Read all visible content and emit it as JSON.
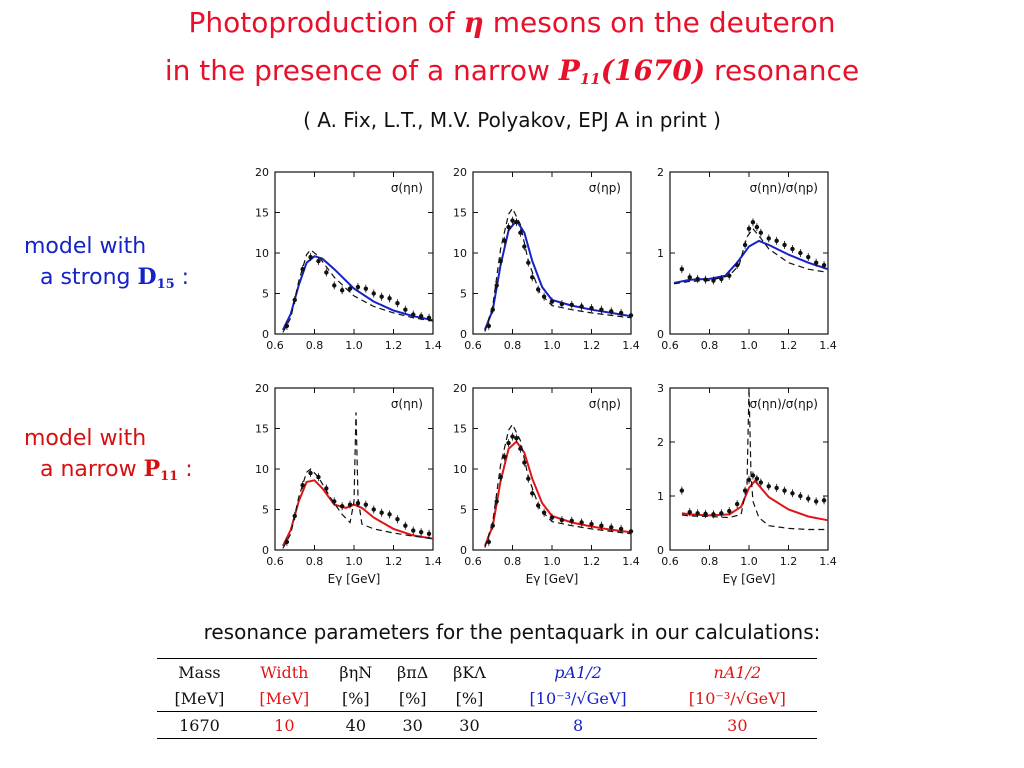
{
  "title": {
    "line1_part1": "Photoproduction of ",
    "line1_symbol": "η",
    "line1_part2": " mesons on the deuteron",
    "line2_part1": "in the presence of a narrow ",
    "line2_P": "P",
    "line2_sub": "11",
    "line2_mass": "(1670)",
    "line2_part2": " resonance"
  },
  "authors": "( A. Fix, L.T., M.V. Polyakov, EPJ A in print )",
  "models": [
    {
      "line1": "model with",
      "line2_prefix": "a strong ",
      "symbol": "D",
      "sub": "15",
      "suffix": " :",
      "color": "#1522c8"
    },
    {
      "line1": "model with",
      "line2_prefix": "a narrow ",
      "symbol": "P",
      "sub": "11",
      "suffix": " :",
      "color": "#d61010"
    }
  ],
  "chart_data": [
    {
      "type": "line",
      "panel": "top-left",
      "label": "σ(ηn)",
      "xlim": [
        0.6,
        1.4
      ],
      "ylim": [
        0,
        20
      ],
      "xticks": [
        0.6,
        0.8,
        1.0,
        1.2,
        1.4
      ],
      "yticks": [
        0,
        5,
        10,
        15,
        20
      ],
      "xlabel": "",
      "series": [
        {
          "style": "solid",
          "color": "#1522c8",
          "x": [
            0.64,
            0.68,
            0.72,
            0.76,
            0.8,
            0.84,
            0.9,
            1.0,
            1.1,
            1.2,
            1.3,
            1.4
          ],
          "y": [
            0.5,
            2.5,
            6.0,
            8.8,
            9.6,
            9.3,
            8.0,
            5.6,
            4.0,
            2.9,
            2.2,
            1.7
          ]
        },
        {
          "style": "dashed",
          "color": "#111111",
          "x": [
            0.64,
            0.68,
            0.72,
            0.76,
            0.78,
            0.82,
            0.9,
            1.0,
            1.1,
            1.2,
            1.3,
            1.4
          ],
          "y": [
            0.2,
            2.0,
            6.5,
            9.8,
            10.4,
            9.6,
            7.0,
            4.7,
            3.4,
            2.6,
            2.0,
            1.6
          ]
        },
        {
          "style": "points",
          "color": "#111111",
          "x": [
            0.66,
            0.7,
            0.74,
            0.78,
            0.82,
            0.86,
            0.9,
            0.94,
            0.98,
            1.02,
            1.06,
            1.1,
            1.14,
            1.18,
            1.22,
            1.26,
            1.3,
            1.34,
            1.38
          ],
          "y": [
            1.0,
            4.2,
            8.0,
            9.5,
            9.0,
            7.6,
            6.0,
            5.4,
            5.6,
            5.8,
            5.6,
            5.0,
            4.6,
            4.4,
            3.8,
            3.0,
            2.4,
            2.2,
            2.0
          ]
        }
      ]
    },
    {
      "type": "line",
      "panel": "top-middle",
      "label": "σ(ηp)",
      "xlim": [
        0.6,
        1.4
      ],
      "ylim": [
        0,
        20
      ],
      "xticks": [
        0.6,
        0.8,
        1.0,
        1.2,
        1.4
      ],
      "yticks": [
        0,
        5,
        10,
        15,
        20
      ],
      "xlabel": "",
      "series": [
        {
          "style": "solid",
          "color": "#1522c8",
          "x": [
            0.66,
            0.7,
            0.74,
            0.78,
            0.82,
            0.86,
            0.9,
            0.95,
            1.0,
            1.1,
            1.2,
            1.3,
            1.4
          ],
          "y": [
            0.5,
            3.0,
            8.5,
            12.8,
            14.0,
            12.5,
            9.0,
            5.8,
            4.2,
            3.5,
            3.0,
            2.6,
            2.2
          ]
        },
        {
          "style": "dashed",
          "color": "#111111",
          "x": [
            0.66,
            0.7,
            0.74,
            0.78,
            0.8,
            0.84,
            0.88,
            0.94,
            1.0,
            1.1,
            1.2,
            1.3,
            1.4
          ],
          "y": [
            0.3,
            3.5,
            10.5,
            14.8,
            15.5,
            13.5,
            9.0,
            5.0,
            3.5,
            3.0,
            2.6,
            2.3,
            2.0
          ]
        },
        {
          "style": "points",
          "color": "#111111",
          "x": [
            0.68,
            0.7,
            0.72,
            0.74,
            0.76,
            0.78,
            0.8,
            0.82,
            0.84,
            0.86,
            0.88,
            0.9,
            0.93,
            0.96,
            1.0,
            1.05,
            1.1,
            1.15,
            1.2,
            1.25,
            1.3,
            1.35,
            1.4
          ],
          "y": [
            1.0,
            3.0,
            6.0,
            9.0,
            11.5,
            13.2,
            14.0,
            13.8,
            12.5,
            10.8,
            8.8,
            7.0,
            5.5,
            4.6,
            4.0,
            3.7,
            3.6,
            3.4,
            3.2,
            3.0,
            2.8,
            2.6,
            2.3
          ]
        }
      ]
    },
    {
      "type": "line",
      "panel": "top-right",
      "label": "σ(ηn)/σ(ηp)",
      "xlim": [
        0.6,
        1.4
      ],
      "ylim": [
        0,
        2
      ],
      "xticks": [
        0.6,
        0.8,
        1.0,
        1.2,
        1.4
      ],
      "yticks": [
        0,
        1,
        2
      ],
      "xlabel": "",
      "series": [
        {
          "style": "solid",
          "color": "#1522c8",
          "x": [
            0.62,
            0.7,
            0.8,
            0.88,
            0.94,
            1.0,
            1.05,
            1.1,
            1.2,
            1.3,
            1.4
          ],
          "y": [
            0.63,
            0.67,
            0.68,
            0.72,
            0.88,
            1.08,
            1.15,
            1.1,
            0.98,
            0.88,
            0.8
          ]
        },
        {
          "style": "dashed",
          "color": "#111111",
          "x": [
            0.62,
            0.7,
            0.8,
            0.9,
            0.95,
            0.99,
            1.02,
            1.06,
            1.1,
            1.2,
            1.3,
            1.4
          ],
          "y": [
            0.62,
            0.65,
            0.66,
            0.72,
            0.85,
            1.2,
            1.3,
            1.18,
            1.05,
            0.88,
            0.8,
            0.76
          ]
        },
        {
          "style": "points",
          "color": "#111111",
          "x": [
            0.66,
            0.7,
            0.74,
            0.78,
            0.82,
            0.86,
            0.9,
            0.94,
            0.98,
            1.0,
            1.02,
            1.04,
            1.06,
            1.1,
            1.14,
            1.18,
            1.22,
            1.26,
            1.3,
            1.34,
            1.38
          ],
          "y": [
            0.8,
            0.7,
            0.68,
            0.67,
            0.66,
            0.68,
            0.72,
            0.85,
            1.1,
            1.3,
            1.38,
            1.32,
            1.25,
            1.18,
            1.15,
            1.1,
            1.05,
            1.0,
            0.95,
            0.88,
            0.85
          ]
        }
      ]
    },
    {
      "type": "line",
      "panel": "bottom-left",
      "label": "σ(ηn)",
      "xlim": [
        0.6,
        1.4
      ],
      "ylim": [
        0,
        20
      ],
      "xticks": [
        0.6,
        0.8,
        1.0,
        1.2,
        1.4
      ],
      "yticks": [
        0,
        5,
        10,
        15,
        20
      ],
      "xlabel": "E_γ [GeV]",
      "series": [
        {
          "style": "solid",
          "color": "#e01515",
          "x": [
            0.64,
            0.68,
            0.72,
            0.76,
            0.8,
            0.84,
            0.9,
            0.96,
            1.0,
            1.04,
            1.1,
            1.2,
            1.3,
            1.4
          ],
          "y": [
            0.5,
            2.5,
            6.0,
            8.4,
            8.6,
            7.6,
            5.6,
            5.2,
            5.6,
            5.2,
            4.0,
            2.6,
            1.8,
            1.4
          ]
        },
        {
          "style": "dashed",
          "color": "#111111",
          "x": [
            0.64,
            0.68,
            0.72,
            0.76,
            0.78,
            0.82,
            0.88,
            0.94,
            0.98,
            1.0,
            1.01,
            1.02,
            1.04,
            1.1,
            1.2,
            1.3,
            1.4
          ],
          "y": [
            0.2,
            2.0,
            6.5,
            9.6,
            10.0,
            9.0,
            6.5,
            4.4,
            3.4,
            6.0,
            17.0,
            6.5,
            3.2,
            2.6,
            2.1,
            1.7,
            1.4
          ]
        },
        {
          "style": "points",
          "color": "#111111",
          "x": [
            0.66,
            0.7,
            0.74,
            0.78,
            0.82,
            0.86,
            0.9,
            0.94,
            0.98,
            1.02,
            1.06,
            1.1,
            1.14,
            1.18,
            1.22,
            1.26,
            1.3,
            1.34,
            1.38
          ],
          "y": [
            1.0,
            4.2,
            8.0,
            9.5,
            9.0,
            7.6,
            6.0,
            5.4,
            5.6,
            5.8,
            5.6,
            5.0,
            4.6,
            4.4,
            3.8,
            3.0,
            2.4,
            2.2,
            2.0
          ]
        }
      ]
    },
    {
      "type": "line",
      "panel": "bottom-middle",
      "label": "σ(ηp)",
      "xlim": [
        0.6,
        1.4
      ],
      "ylim": [
        0,
        20
      ],
      "xticks": [
        0.6,
        0.8,
        1.0,
        1.2,
        1.4
      ],
      "yticks": [
        0,
        5,
        10,
        15,
        20
      ],
      "xlabel": "E_γ [GeV]",
      "series": [
        {
          "style": "solid",
          "color": "#e01515",
          "x": [
            0.66,
            0.7,
            0.74,
            0.78,
            0.82,
            0.86,
            0.9,
            0.95,
            1.0,
            1.1,
            1.2,
            1.3,
            1.4
          ],
          "y": [
            0.5,
            3.0,
            8.5,
            12.5,
            13.4,
            12.0,
            8.8,
            5.8,
            4.2,
            3.4,
            2.9,
            2.5,
            2.2
          ]
        },
        {
          "style": "dashed",
          "color": "#111111",
          "x": [
            0.66,
            0.7,
            0.74,
            0.78,
            0.8,
            0.84,
            0.88,
            0.94,
            1.0,
            1.1,
            1.2,
            1.3,
            1.4
          ],
          "y": [
            0.3,
            3.5,
            10.5,
            14.8,
            15.5,
            13.5,
            9.0,
            5.0,
            3.5,
            3.0,
            2.6,
            2.3,
            2.0
          ]
        },
        {
          "style": "points",
          "color": "#111111",
          "x": [
            0.68,
            0.7,
            0.72,
            0.74,
            0.76,
            0.78,
            0.8,
            0.82,
            0.84,
            0.86,
            0.88,
            0.9,
            0.93,
            0.96,
            1.0,
            1.05,
            1.1,
            1.15,
            1.2,
            1.25,
            1.3,
            1.35,
            1.4
          ],
          "y": [
            1.0,
            3.0,
            6.0,
            9.0,
            11.5,
            13.2,
            14.0,
            13.8,
            12.5,
            10.8,
            8.8,
            7.0,
            5.5,
            4.6,
            4.0,
            3.7,
            3.6,
            3.4,
            3.2,
            3.0,
            2.8,
            2.6,
            2.3
          ]
        }
      ]
    },
    {
      "type": "line",
      "panel": "bottom-right",
      "label": "σ(ηn)/σ(ηp)",
      "xlim": [
        0.6,
        1.4
      ],
      "ylim": [
        0,
        3
      ],
      "xticks": [
        0.6,
        0.8,
        1.0,
        1.2,
        1.4
      ],
      "yticks": [
        0,
        1,
        2,
        3
      ],
      "xlabel": "E_γ [GeV]",
      "series": [
        {
          "style": "solid",
          "color": "#e01515",
          "x": [
            0.66,
            0.7,
            0.8,
            0.9,
            0.96,
            1.0,
            1.03,
            1.06,
            1.1,
            1.2,
            1.3,
            1.4
          ],
          "y": [
            0.68,
            0.66,
            0.64,
            0.66,
            0.8,
            1.15,
            1.28,
            1.15,
            0.98,
            0.75,
            0.62,
            0.55
          ]
        },
        {
          "style": "dashed",
          "color": "#111111",
          "x": [
            0.66,
            0.7,
            0.8,
            0.9,
            0.96,
            0.99,
            1.0,
            1.01,
            1.02,
            1.05,
            1.1,
            1.2,
            1.3,
            1.4
          ],
          "y": [
            0.65,
            0.63,
            0.62,
            0.6,
            0.66,
            1.2,
            3.0,
            1.4,
            0.9,
            0.6,
            0.45,
            0.4,
            0.38,
            0.38
          ]
        },
        {
          "style": "points",
          "color": "#111111",
          "x": [
            0.66,
            0.7,
            0.74,
            0.78,
            0.82,
            0.86,
            0.9,
            0.94,
            0.98,
            1.0,
            1.02,
            1.04,
            1.06,
            1.1,
            1.14,
            1.18,
            1.22,
            1.26,
            1.3,
            1.34,
            1.38
          ],
          "y": [
            1.1,
            0.7,
            0.68,
            0.67,
            0.66,
            0.68,
            0.72,
            0.85,
            1.1,
            1.3,
            1.38,
            1.32,
            1.25,
            1.18,
            1.15,
            1.1,
            1.05,
            1.0,
            0.95,
            0.9,
            0.92
          ]
        }
      ]
    }
  ],
  "params_caption": "resonance parameters for the pentaquark in our calculations:",
  "table": {
    "headers": [
      {
        "top": "Mass",
        "bottom": "[MeV]",
        "color": "#111111"
      },
      {
        "top": "Width",
        "bottom": "[MeV]",
        "color": "#e01515"
      },
      {
        "top": "βηN",
        "bottom": "[%]",
        "color": "#111111"
      },
      {
        "top": "βπΔ",
        "bottom": "[%]",
        "color": "#111111"
      },
      {
        "top": "βKΛ",
        "bottom": "[%]",
        "color": "#111111"
      },
      {
        "top": "pA1/2",
        "bottom": "[10⁻³/√GeV]",
        "color": "#1522c8"
      },
      {
        "top": "nA1/2",
        "bottom": "[10⁻³/√GeV]",
        "color": "#e01515"
      }
    ],
    "values": [
      "1670",
      "10",
      "40",
      "30",
      "30",
      "8",
      "30"
    ]
  }
}
